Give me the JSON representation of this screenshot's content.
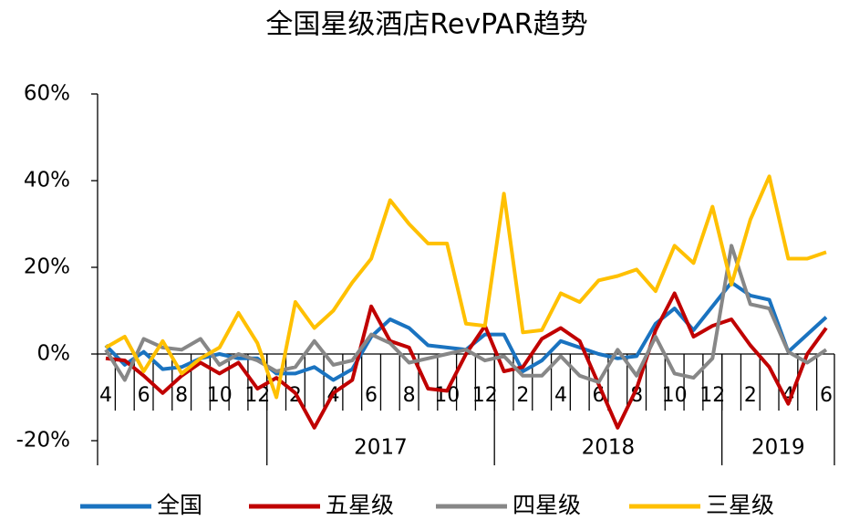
{
  "chart_data": {
    "type": "line",
    "title": "全国星级酒店RevPAR趋势",
    "categories": [
      "4",
      null,
      "6",
      null,
      "8",
      null,
      "10",
      null,
      "12",
      null,
      "2",
      null,
      "4",
      null,
      "6",
      null,
      "8",
      null,
      "10",
      null,
      "12",
      null,
      "2",
      null,
      "4",
      null,
      "6",
      null,
      "8",
      null,
      "10",
      null,
      "12",
      null,
      "2",
      null,
      "4",
      null,
      "6"
    ],
    "groups": [
      {
        "label": "2017",
        "start": 9,
        "end": 20
      },
      {
        "label": "2018",
        "start": 21,
        "end": 32
      },
      {
        "label": "2019",
        "start": 33,
        "end": 38
      }
    ],
    "series": [
      {
        "name": "全国",
        "color": "#1a73c0",
        "values": [
          2,
          -2.5,
          0.5,
          -3.5,
          -3,
          -1,
          0,
          -1,
          -1,
          -4.5,
          -4.5,
          -3,
          -6,
          -3.5,
          4,
          8,
          6,
          2,
          1.5,
          1,
          4.5,
          4.5,
          -4,
          -1.5,
          3,
          1.5,
          0,
          -1,
          -0.5,
          7,
          10.5,
          5.5,
          11,
          16.5,
          13.5,
          12.5,
          0.5,
          4.5,
          8.5
        ]
      },
      {
        "name": "五星级",
        "color": "#c00000",
        "values": [
          -1,
          -1.5,
          -5,
          -9,
          -5,
          -2,
          -4.5,
          -2,
          -8,
          -5.5,
          -9,
          -17,
          -9,
          -6,
          11,
          3,
          1.5,
          -8,
          -8.5,
          0,
          6.5,
          -4,
          -3,
          3.5,
          6,
          3,
          -7,
          -17,
          -8,
          5.5,
          14,
          4,
          6.5,
          8,
          2,
          -3,
          -11.5,
          0,
          6
        ]
      },
      {
        "name": "四星级",
        "color": "#878787",
        "values": [
          1,
          -6,
          3.5,
          1.5,
          1,
          3.5,
          -2.5,
          0,
          -1.5,
          -4,
          -3,
          3,
          -2.5,
          -1.5,
          4.5,
          2.5,
          -2,
          -1,
          0,
          1,
          -1.5,
          -0.5,
          -5,
          -5,
          -0.5,
          -5,
          -6.5,
          1,
          -5,
          4,
          -4.5,
          -5.5,
          -1,
          25,
          11.5,
          10.5,
          0.5,
          -2,
          1
        ]
      },
      {
        "name": "三星级",
        "color": "#ffc000",
        "values": [
          1.5,
          4,
          -4,
          3,
          -4.5,
          -1,
          1.5,
          9.5,
          2.5,
          -10,
          12,
          6,
          10,
          16.5,
          22,
          35.5,
          30,
          25.5,
          25.5,
          7,
          6.5,
          37,
          5,
          5.5,
          14,
          12,
          17,
          18,
          19.5,
          14.5,
          25,
          21,
          34,
          16,
          31,
          41,
          22,
          22,
          23.5
        ]
      }
    ],
    "ylim": [
      -20,
      60
    ],
    "yticks": [
      {
        "value": -20,
        "label": "-20%"
      },
      {
        "value": 0,
        "label": "0%"
      },
      {
        "value": 20,
        "label": "20%"
      },
      {
        "value": 40,
        "label": "40%"
      },
      {
        "value": 60,
        "label": "60%"
      }
    ],
    "legend": "bottom"
  }
}
